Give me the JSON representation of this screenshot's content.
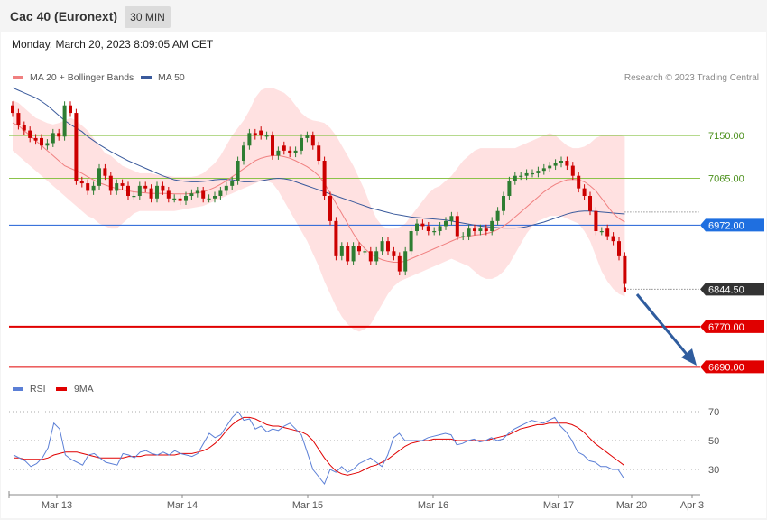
{
  "header": {
    "title": "Cac 40 (Euronext)",
    "timeframe_button": "30 MIN",
    "datetime": "Monday, March 20, 2023 8:09:05 AM CET"
  },
  "legend": {
    "ma20_label": "MA 20 + Bollinger Bands",
    "ma50_label": "MA 50",
    "copyright": "Research © 2023 Trading Central"
  },
  "rsi_legend": {
    "rsi_label": "RSI",
    "ma9_label": "9MA"
  },
  "colors": {
    "ma20": "#f08080",
    "ma50": "#3a5a9c",
    "bollinger_fill": "#ffe1e1",
    "bull_candle": "#2e7d32",
    "bear_candle": "#cc0000",
    "resistance_line": "#8bc34a",
    "pivot_line": "#1f5fd6",
    "support_line": "#e00000",
    "rsi_line": "#5b7fd6",
    "rsi_ma_line": "#e00000",
    "arrow": "#2f5c9e"
  },
  "chart_data": [
    {
      "type": "candlestick",
      "title": "Cac 40 (Euronext)",
      "interval": "30 MIN",
      "x_tick_labels": [
        "Mar 13",
        "Mar 14",
        "Mar 15",
        "Mar 16",
        "Mar 17",
        "Mar 20",
        "Apr 3"
      ],
      "ylim": [
        6680,
        7240
      ],
      "levels": [
        {
          "value": 7150.0,
          "label": "7150.00",
          "role": "resistance"
        },
        {
          "value": 7065.0,
          "label": "7065.00",
          "role": "resistance"
        },
        {
          "value": 6972.0,
          "label": "6972.00",
          "role": "pivot"
        },
        {
          "value": 6844.5,
          "label": "6844.50",
          "role": "last"
        },
        {
          "value": 6770.0,
          "label": "6770.00",
          "role": "support"
        },
        {
          "value": 6690.0,
          "label": "6690.00",
          "role": "support"
        }
      ],
      "close": [
        7195,
        7170,
        7160,
        7145,
        7140,
        7130,
        7135,
        7155,
        7148,
        7210,
        7195,
        7060,
        7055,
        7040,
        7050,
        7085,
        7070,
        7040,
        7055,
        7050,
        7030,
        7030,
        7050,
        7045,
        7025,
        7050,
        7040,
        7025,
        7025,
        7020,
        7030,
        7035,
        7040,
        7025,
        7025,
        7030,
        7040,
        7050,
        7060,
        7100,
        7130,
        7155,
        7150,
        7150,
        7150,
        7110,
        7120,
        7120,
        7115,
        7120,
        7145,
        7150,
        7130,
        7100,
        7030,
        6980,
        6910,
        6930,
        6900,
        6930,
        6920,
        6920,
        6900,
        6920,
        6940,
        6920,
        6910,
        6880,
        6920,
        6960,
        6975,
        6970,
        6960,
        6960,
        6970,
        6980,
        6990,
        6950,
        6950,
        6965,
        6960,
        6965,
        6960,
        6980,
        7000,
        7030,
        7060,
        7070,
        7070,
        7075,
        7075,
        7080,
        7085,
        7090,
        7095,
        7100,
        7090,
        7070,
        7045,
        7030,
        7000,
        6960,
        6960,
        6950,
        6940,
        6910,
        6855
      ],
      "open": [
        7210,
        7195,
        7170,
        7160,
        7145,
        7145,
        7130,
        7135,
        7155,
        7148,
        7210,
        7195,
        7060,
        7055,
        7040,
        7050,
        7085,
        7070,
        7040,
        7055,
        7050,
        7030,
        7030,
        7050,
        7045,
        7025,
        7050,
        7040,
        7025,
        7025,
        7020,
        7030,
        7035,
        7040,
        7025,
        7025,
        7030,
        7040,
        7050,
        7060,
        7100,
        7130,
        7155,
        7160,
        7150,
        7150,
        7110,
        7130,
        7120,
        7115,
        7120,
        7145,
        7150,
        7130,
        7100,
        7030,
        6980,
        6910,
        6930,
        6900,
        6930,
        6920,
        6920,
        6900,
        6920,
        6940,
        6920,
        6910,
        6880,
        6920,
        6960,
        6975,
        6970,
        6960,
        6960,
        6970,
        6980,
        6990,
        6950,
        6950,
        6965,
        6960,
        6965,
        6960,
        6980,
        7000,
        7030,
        7060,
        7070,
        7070,
        7075,
        7075,
        7080,
        7085,
        7090,
        7095,
        7100,
        7090,
        7070,
        7045,
        7030,
        7000,
        6960,
        6965,
        6950,
        6940,
        6910
      ],
      "bands": {
        "upper": [
          7220,
          7215,
          7205,
          7195,
          7185,
          7180,
          7175,
          7172,
          7175,
          7180,
          7185,
          7180,
          7170,
          7160,
          7145,
          7130,
          7115,
          7110,
          7100,
          7090,
          7085,
          7080,
          7075,
          7075,
          7075,
          7072,
          7070,
          7070,
          7068,
          7068,
          7068,
          7068,
          7070,
          7075,
          7085,
          7095,
          7110,
          7130,
          7150,
          7165,
          7180,
          7200,
          7225,
          7240,
          7245,
          7245,
          7240,
          7235,
          7225,
          7210,
          7195,
          7185,
          7180,
          7178,
          7175,
          7165,
          7150,
          7130,
          7110,
          7090,
          7065,
          7040,
          7010,
          6985,
          6970,
          6965,
          6965,
          6968,
          6975,
          6990,
          7005,
          7020,
          7035,
          7045,
          7050,
          7060,
          7070,
          7085,
          7100,
          7110,
          7120,
          7125,
          7125,
          7125,
          7125,
          7125,
          7125,
          7125,
          7130,
          7135,
          7140,
          7145,
          7150,
          7155,
          7150,
          7140,
          7130,
          7125,
          7125,
          7128,
          7135,
          7145,
          7150,
          7152,
          7152,
          7150,
          7148
        ],
        "lower": [
          7120,
          7110,
          7100,
          7090,
          7080,
          7070,
          7060,
          7050,
          7040,
          7030,
          7020,
          7010,
          7000,
          6990,
          6985,
          6975,
          6970,
          6965,
          6965,
          6975,
          6985,
          6995,
          7000,
          7000,
          7000,
          7000,
          7000,
          7000,
          7000,
          7002,
          7004,
          7006,
          7008,
          7010,
          7015,
          7020,
          7025,
          7030,
          7035,
          7040,
          7045,
          7050,
          7055,
          7060,
          7060,
          7055,
          7040,
          7020,
          7000,
          6980,
          6960,
          6940,
          6915,
          6890,
          6860,
          6835,
          6810,
          6790,
          6775,
          6765,
          6760,
          6765,
          6775,
          6795,
          6815,
          6835,
          6850,
          6860,
          6865,
          6870,
          6875,
          6880,
          6885,
          6890,
          6895,
          6900,
          6905,
          6900,
          6895,
          6890,
          6880,
          6870,
          6865,
          6865,
          6870,
          6880,
          6895,
          6915,
          6935,
          6955,
          6970,
          6980,
          6985,
          6990,
          6990,
          6990,
          6985,
          6980,
          6975,
          6960,
          6940,
          6910,
          6880,
          6860,
          6845,
          6835,
          6830
        ]
      },
      "ma20": [
        7175,
        7170,
        7160,
        7150,
        7140,
        7130,
        7120,
        7110,
        7100,
        7090,
        7085,
        7080,
        7075,
        7068,
        7062,
        7056,
        7052,
        7048,
        7045,
        7042,
        7040,
        7038,
        7037,
        7036,
        7035,
        7035,
        7035,
        7035,
        7034,
        7034,
        7034,
        7035,
        7036,
        7038,
        7042,
        7047,
        7053,
        7060,
        7068,
        7076,
        7084,
        7092,
        7100,
        7105,
        7108,
        7110,
        7110,
        7108,
        7105,
        7100,
        7094,
        7088,
        7080,
        7070,
        7055,
        7035,
        7015,
        6995,
        6975,
        6955,
        6938,
        6925,
        6915,
        6908,
        6903,
        6900,
        6898,
        6898,
        6900,
        6905,
        6910,
        6915,
        6920,
        6925,
        6930,
        6935,
        6940,
        6945,
        6948,
        6950,
        6952,
        6953,
        6955,
        6958,
        6963,
        6970,
        6978,
        6988,
        6998,
        7008,
        7018,
        7028,
        7038,
        7046,
        7053,
        7058,
        7062,
        7063,
        7062,
        7058,
        7050,
        7040,
        7025,
        7010,
        6995,
        6985,
        6978
      ],
      "ma50": [
        7245,
        7240,
        7235,
        7230,
        7225,
        7218,
        7210,
        7200,
        7190,
        7180,
        7172,
        7165,
        7158,
        7148,
        7140,
        7132,
        7125,
        7118,
        7112,
        7106,
        7100,
        7095,
        7090,
        7085,
        7080,
        7075,
        7070,
        7066,
        7062,
        7060,
        7059,
        7058,
        7058,
        7059,
        7060,
        7062,
        7063,
        7063,
        7062,
        7060,
        7058,
        7058,
        7059,
        7060,
        7062,
        7064,
        7065,
        7064,
        7062,
        7058,
        7054,
        7050,
        7046,
        7042,
        7038,
        7034,
        7030,
        7026,
        7022,
        7018,
        7014,
        7010,
        7006,
        7003,
        7000,
        6997,
        6994,
        6992,
        6990,
        6988,
        6987,
        6986,
        6985,
        6984,
        6983,
        6982,
        6980,
        6978,
        6976,
        6974,
        6972,
        6970,
        6969,
        6968,
        6967,
        6966,
        6966,
        6966,
        6967,
        6969,
        6972,
        6975,
        6978,
        6982,
        6986,
        6990,
        6994,
        6997,
        6999,
        7000,
        7000,
        6999,
        6998,
        6997,
        6996,
        6995,
        6994
      ]
    },
    {
      "type": "line",
      "title": "RSI",
      "ylim": [
        15,
        80
      ],
      "y_tick_labels": [
        "70",
        "50",
        "30"
      ],
      "series": [
        {
          "name": "RSI",
          "values": [
            40,
            38,
            36,
            32,
            34,
            38,
            45,
            62,
            58,
            40,
            37,
            35,
            33,
            40,
            41,
            38,
            35,
            34,
            33,
            41,
            40,
            38,
            42,
            43,
            41,
            40,
            42,
            40,
            43,
            41,
            40,
            39,
            41,
            48,
            55,
            52,
            54,
            60,
            66,
            70,
            64,
            65,
            58,
            60,
            56,
            58,
            57,
            60,
            62,
            58,
            54,
            42,
            30,
            25,
            20,
            30,
            28,
            32,
            28,
            30,
            34,
            36,
            38,
            35,
            32,
            40,
            52,
            55,
            50,
            50,
            50,
            50,
            52,
            53,
            54,
            55,
            54,
            47,
            48,
            50,
            51,
            49,
            50,
            52,
            50,
            51,
            55,
            58,
            60,
            62,
            64,
            63,
            62,
            64,
            66,
            60,
            56,
            50,
            42,
            40,
            36,
            35,
            32,
            32,
            30,
            30,
            24
          ]
        },
        {
          "name": "9MA",
          "values": [
            38,
            38,
            37,
            37,
            37,
            37,
            38,
            40,
            41,
            42,
            42,
            42,
            41,
            40,
            39,
            38,
            38,
            38,
            38,
            38,
            39,
            39,
            39,
            40,
            40,
            40,
            40,
            40,
            40,
            41,
            41,
            41,
            42,
            43,
            45,
            48,
            52,
            57,
            61,
            64,
            66,
            66,
            65,
            63,
            61,
            60,
            60,
            59,
            58,
            57,
            56,
            54,
            50,
            44,
            38,
            33,
            29,
            27,
            26,
            27,
            28,
            30,
            32,
            33,
            35,
            37,
            40,
            43,
            46,
            48,
            49,
            50,
            50,
            51,
            51,
            51,
            51,
            50,
            50,
            50,
            50,
            50,
            50,
            51,
            52,
            53,
            54,
            56,
            58,
            59,
            60,
            61,
            61,
            62,
            62,
            62,
            62,
            61,
            59,
            56,
            52,
            48,
            45,
            42,
            39,
            36,
            33
          ]
        }
      ]
    }
  ]
}
